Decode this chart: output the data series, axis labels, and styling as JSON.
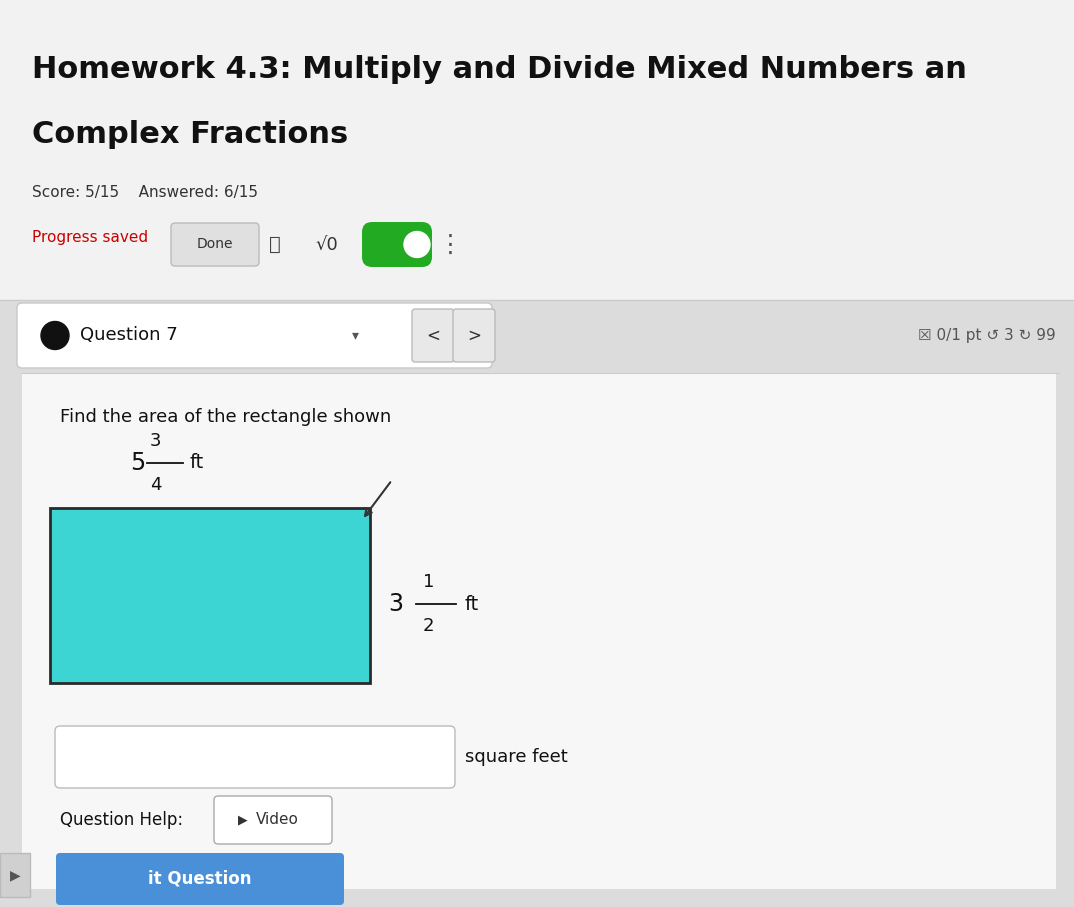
{
  "bg_color": "#dcdcdc",
  "title_bg_color": "#f0f0f0",
  "title_line1": "Homework 4.3: Multiply and Divide Mixed Numbers an",
  "title_line2": "Complex Fractions",
  "score_text": "Score: 5/15    Answered: 6/15",
  "progress_saved_text": "Progress saved",
  "done_text": "Done",
  "sqrt_text": "√0",
  "question_label": "Question 7",
  "question_info": "☒ 0/1 pt ↺ 3 ↻ 99",
  "find_area_text": "Find the area of the rectangle shown",
  "width_num": "3",
  "width_den": "4",
  "width_whole": "5",
  "width_unit": "ft",
  "height_whole": "3",
  "height_num": "1",
  "height_den": "2",
  "height_unit": "ft",
  "rect_color": "#3dd4d4",
  "rect_border_color": "#2a2a2a",
  "answer_box_label": "square feet",
  "help_text": "Question Help:",
  "video_icon": "▶",
  "video_text": "Video",
  "title_color": "#111111",
  "progress_color": "#cc0000",
  "section_bg": "#ffffff",
  "toolbar_bg": "#f5f5f5",
  "nav_bg": "#e8e8e8",
  "figw": 10.74,
  "figh": 9.07,
  "dpi": 100
}
